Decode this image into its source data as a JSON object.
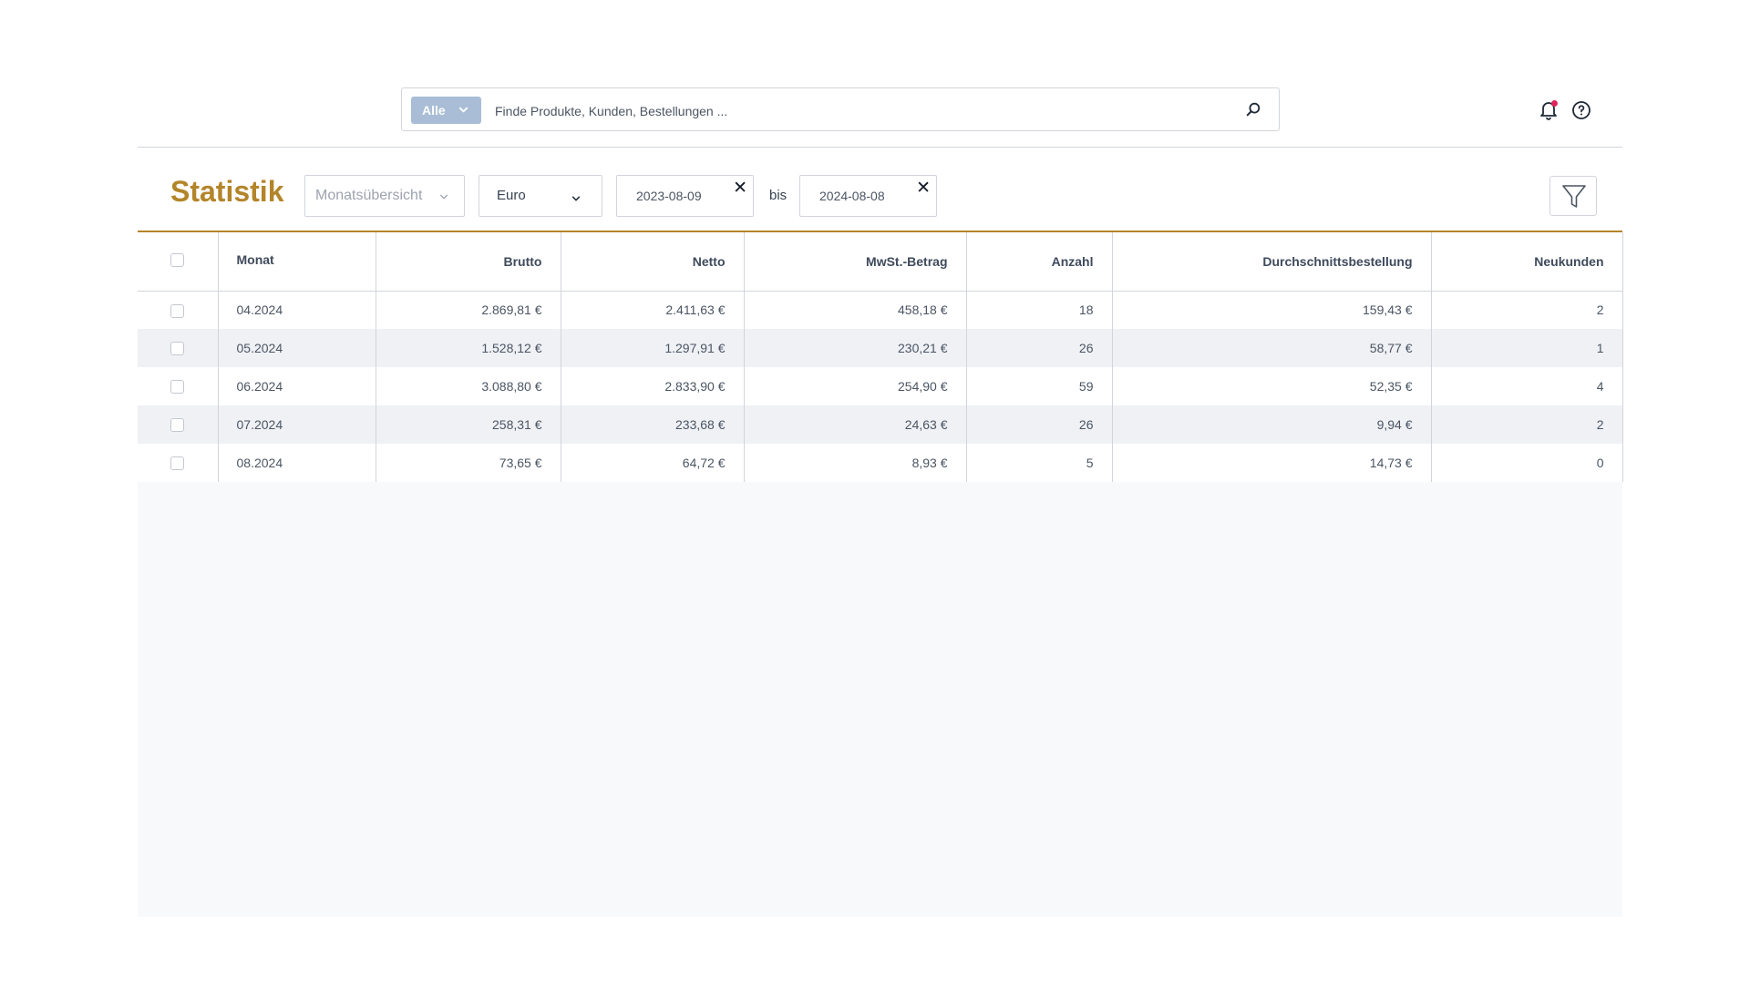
{
  "search": {
    "scope_label": "Alle",
    "placeholder": "Finde Produkte, Kunden, Bestellungen ...",
    "value": ""
  },
  "header_icons": {
    "notifications": "bell-icon",
    "help": "help-icon",
    "notification_dot_color": "#e0245e"
  },
  "toolbar": {
    "title": "Statistik",
    "view_select": "Monatsübersicht",
    "currency_select": "Euro",
    "date_from": "2023-08-09",
    "date_separator": "bis",
    "date_to": "2024-08-08",
    "clear_symbol": "✕",
    "filter_icon": "filter-icon"
  },
  "colors": {
    "accent": "#b3852a",
    "scope_button": "#a9bed6"
  },
  "table": {
    "columns": [
      "Monat",
      "Brutto",
      "Netto",
      "MwSt.-Betrag",
      "Anzahl",
      "Durchschnittsbestellung",
      "Neukunden"
    ],
    "rows": [
      [
        "04.2024",
        "2.869,81 €",
        "2.411,63 €",
        "458,18 €",
        "18",
        "159,43 €",
        "2"
      ],
      [
        "05.2024",
        "1.528,12 €",
        "1.297,91 €",
        "230,21 €",
        "26",
        "58,77 €",
        "1"
      ],
      [
        "06.2024",
        "3.088,80 €",
        "2.833,90 €",
        "254,90 €",
        "59",
        "52,35 €",
        "4"
      ],
      [
        "07.2024",
        "258,31 €",
        "233,68 €",
        "24,63 €",
        "26",
        "9,94 €",
        "2"
      ],
      [
        "08.2024",
        "73,65 €",
        "64,72 €",
        "8,93 €",
        "5",
        "14,73 €",
        "0"
      ]
    ]
  }
}
